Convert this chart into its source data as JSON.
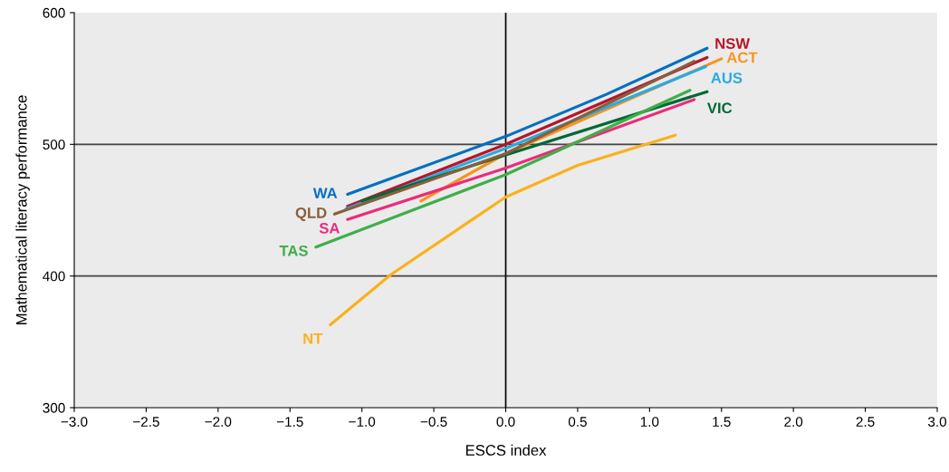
{
  "chart_data": {
    "type": "line",
    "xlabel": "ESCS index",
    "ylabel": "Mathematical literacy performance",
    "xlim": [
      -3,
      3
    ],
    "ylim": [
      300,
      600
    ],
    "xticks": [
      {
        "value": -3,
        "label": "−3.0"
      },
      {
        "value": -2.5,
        "label": "−2.5"
      },
      {
        "value": -2,
        "label": "−2.0"
      },
      {
        "value": -1.5,
        "label": "−1.5"
      },
      {
        "value": -1,
        "label": "−1.0"
      },
      {
        "value": -0.5,
        "label": "−0.5"
      },
      {
        "value": 0,
        "label": "0.0"
      },
      {
        "value": 0.5,
        "label": "0.5"
      },
      {
        "value": 1,
        "label": "1.0"
      },
      {
        "value": 1.5,
        "label": "1.5"
      },
      {
        "value": 2,
        "label": "2.0"
      },
      {
        "value": 2.5,
        "label": "2.5"
      },
      {
        "value": 3,
        "label": "3.0"
      }
    ],
    "yticks": [
      300,
      400,
      500,
      600
    ],
    "grid": false,
    "legend": false,
    "line_style": "solid",
    "marker": "none",
    "ref_lines": [
      {
        "axis": "y",
        "value": 400,
        "color": "#444444"
      },
      {
        "axis": "y",
        "value": 500,
        "color": "#444444"
      },
      {
        "axis": "x",
        "value": 0,
        "color": "#000000"
      }
    ],
    "series": [
      {
        "name": "WA",
        "color": "#0070c0",
        "x": [
          -1.1,
          0,
          0.7,
          1.4
        ],
        "values": [
          462,
          506,
          538,
          573
        ]
      },
      {
        "name": "NSW",
        "color": "#b5162b",
        "x": [
          -1.1,
          0,
          1.4
        ],
        "values": [
          453,
          500,
          566
        ]
      },
      {
        "name": "ACT",
        "color": "#f7941d",
        "x": [
          -0.59,
          0,
          1.5
        ],
        "values": [
          457,
          493,
          565
        ]
      },
      {
        "name": "AUS",
        "color": "#29abe2",
        "x": [
          -1.11,
          0,
          1.39
        ],
        "values": [
          451,
          497,
          559
        ]
      },
      {
        "name": "VIC",
        "color": "#006837",
        "x": [
          -1.0,
          0,
          1.4
        ],
        "values": [
          457,
          492,
          540
        ]
      },
      {
        "name": "QLD",
        "color": "#8b5e3c",
        "x": [
          -1.19,
          0,
          1.31
        ],
        "values": [
          447,
          493,
          563
        ]
      },
      {
        "name": "SA",
        "color": "#ed2a7b",
        "x": [
          -1.1,
          0,
          1.31
        ],
        "values": [
          443,
          482,
          534
        ]
      },
      {
        "name": "TAS",
        "color": "#3fae49",
        "x": [
          -1.32,
          0,
          1.28
        ],
        "values": [
          422,
          477,
          541
        ]
      },
      {
        "name": "NT",
        "color": "#fbb01d",
        "x": [
          -1.22,
          -0.8,
          0,
          0.5,
          1.18
        ],
        "values": [
          363,
          401,
          460,
          484,
          507
        ]
      }
    ]
  }
}
